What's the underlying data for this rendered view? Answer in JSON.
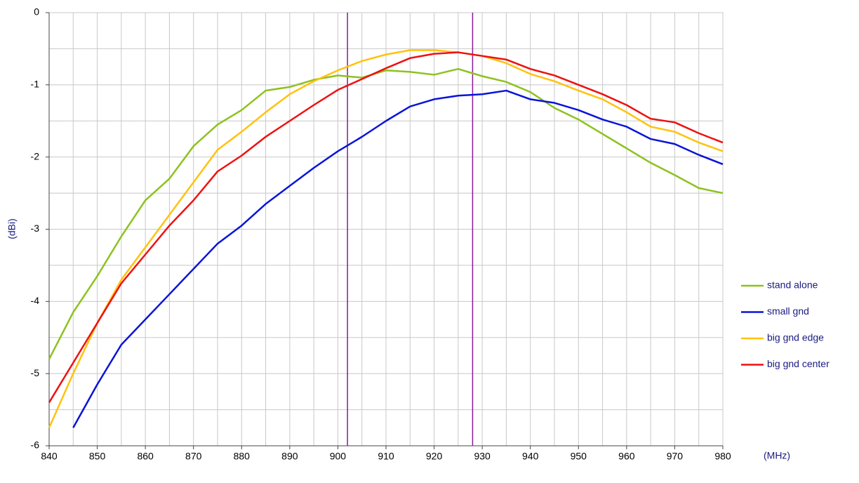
{
  "chart_data": {
    "type": "line",
    "x_label": "(MHz)",
    "y_label": "(dBi)",
    "x": [
      840,
      845,
      850,
      855,
      860,
      865,
      870,
      875,
      880,
      885,
      890,
      895,
      900,
      905,
      910,
      915,
      920,
      925,
      930,
      935,
      940,
      945,
      950,
      955,
      960,
      965,
      970,
      975,
      980
    ],
    "series": [
      {
        "name": "stand alone",
        "color": "#8dc21f",
        "values": [
          -4.8,
          -4.15,
          -3.65,
          -3.1,
          -2.6,
          -2.3,
          -1.85,
          -1.55,
          -1.35,
          -1.08,
          -1.03,
          -0.93,
          -0.87,
          -0.9,
          -0.8,
          -0.82,
          -0.86,
          -0.78,
          -0.88,
          -0.96,
          -1.1,
          -1.32,
          -1.48,
          -1.68,
          -1.88,
          -2.08,
          -2.25,
          -2.43,
          -2.5
        ]
      },
      {
        "name": "small gnd",
        "color": "#0a14d8",
        "values": [
          null,
          -5.75,
          -5.15,
          -4.6,
          -4.25,
          -3.9,
          -3.55,
          -3.2,
          -2.95,
          -2.65,
          -2.4,
          -2.15,
          -1.92,
          -1.72,
          -1.5,
          -1.3,
          -1.2,
          -1.15,
          -1.13,
          -1.08,
          -1.2,
          -1.25,
          -1.35,
          -1.48,
          -1.58,
          -1.75,
          -1.82,
          -1.97,
          -2.1
        ]
      },
      {
        "name": "big gnd edge",
        "color": "#ffc20e",
        "values": [
          -5.75,
          -5.0,
          -4.3,
          -3.7,
          -3.25,
          -2.8,
          -2.35,
          -1.9,
          -1.65,
          -1.38,
          -1.13,
          -0.95,
          -0.8,
          -0.67,
          -0.58,
          -0.52,
          -0.52,
          -0.55,
          -0.6,
          -0.7,
          -0.85,
          -0.95,
          -1.08,
          -1.2,
          -1.38,
          -1.58,
          -1.65,
          -1.8,
          -1.92
        ]
      },
      {
        "name": "big gnd center",
        "color": "#ee1111",
        "values": [
          -5.4,
          -4.85,
          -4.3,
          -3.75,
          -3.35,
          -2.95,
          -2.6,
          -2.2,
          -1.98,
          -1.72,
          -1.5,
          -1.28,
          -1.07,
          -0.92,
          -0.77,
          -0.63,
          -0.57,
          -0.55,
          -0.6,
          -0.65,
          -0.78,
          -0.87,
          -1.0,
          -1.13,
          -1.28,
          -1.47,
          -1.52,
          -1.67,
          -1.8
        ]
      }
    ],
    "xlim": [
      840,
      980
    ],
    "ylim": [
      -6,
      0
    ],
    "xticks": [
      840,
      850,
      860,
      870,
      880,
      890,
      900,
      910,
      920,
      930,
      940,
      950,
      960,
      970,
      980
    ],
    "xminorticks": [
      845,
      855,
      865,
      875,
      885,
      895,
      905,
      915,
      925,
      935,
      945,
      955,
      965,
      975
    ],
    "yticks": [
      0,
      -1,
      -2,
      -3,
      -4,
      -5,
      -6
    ],
    "yminorticks": [
      -0.5,
      -1.5,
      -2.5,
      -3.5,
      -4.5,
      -5.5
    ],
    "vlines": [
      902,
      928
    ],
    "vline_color": "#8b1a9a",
    "grid": true,
    "legend": "right"
  }
}
